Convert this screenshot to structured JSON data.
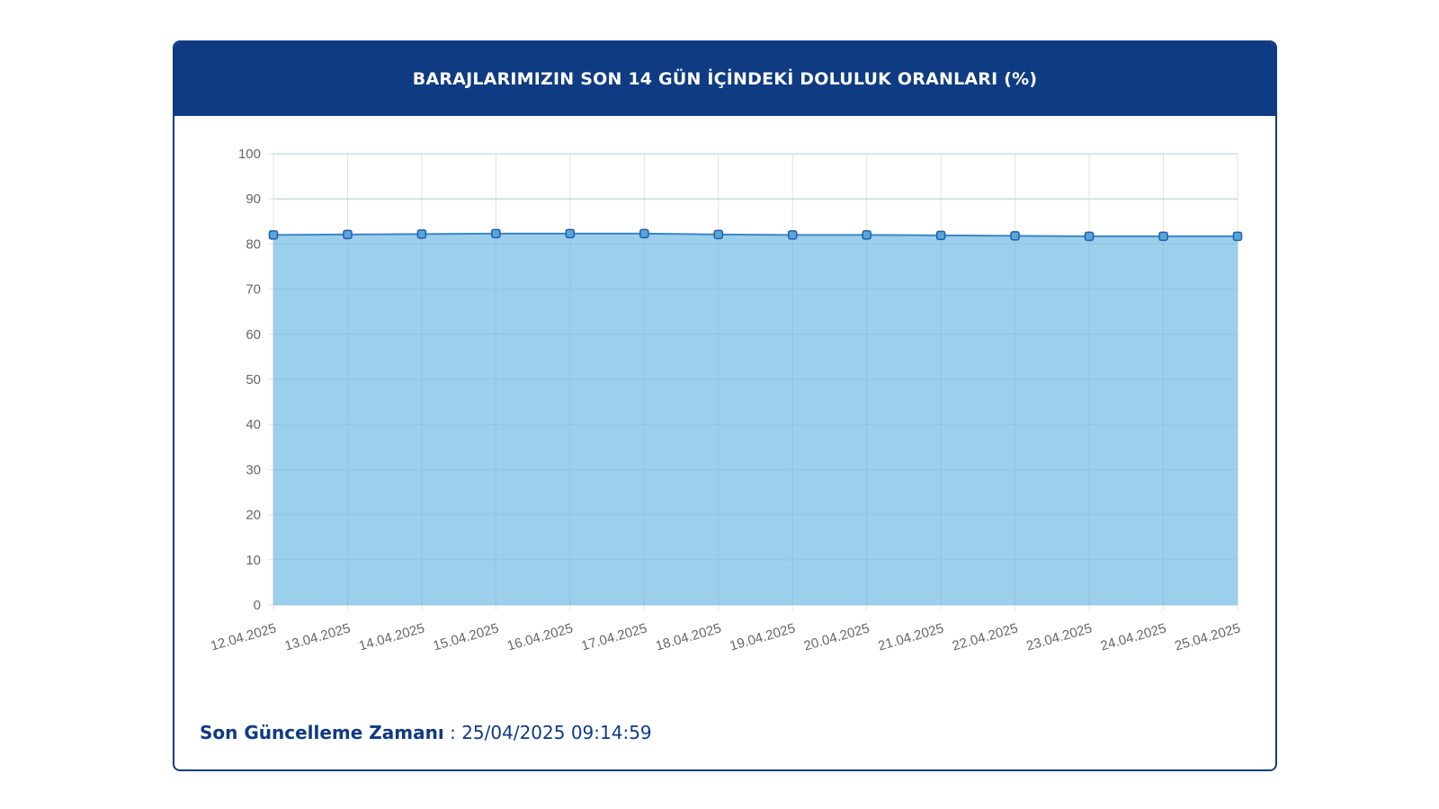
{
  "card": {
    "title": "BARAJLARIMIZIN SON 14 GÜN İÇİNDEKİ DOLULUK ORANLARI (%)"
  },
  "footer": {
    "label": "Son Güncelleme Zamanı",
    "separator": " : ",
    "timestamp": "25/04/2025 09:14:59"
  },
  "colors": {
    "header": "#0f3b82",
    "area_fill": "#9ccfec",
    "line": "#3a86c6",
    "point_fill": "#5aa4dc",
    "point_stroke": "#1f5fa8",
    "grid": "#e2e2e2",
    "grid_over_fill": "#84bbe0"
  },
  "chart_data": {
    "type": "area",
    "title": "BARAJLARIMIZIN SON 14 GÜN İÇİNDEKİ DOLULUK ORANLARI (%)",
    "xlabel": "",
    "ylabel": "",
    "ylim": [
      0,
      100
    ],
    "yticks": [
      0,
      10,
      20,
      30,
      40,
      50,
      60,
      70,
      80,
      90,
      100
    ],
    "grid": true,
    "legend": "none",
    "categories": [
      "12.04.2025",
      "13.04.2025",
      "14.04.2025",
      "15.04.2025",
      "16.04.2025",
      "17.04.2025",
      "18.04.2025",
      "19.04.2025",
      "20.04.2025",
      "21.04.2025",
      "22.04.2025",
      "23.04.2025",
      "24.04.2025",
      "25.04.2025"
    ],
    "series": [
      {
        "values": [
          82.0,
          82.1,
          82.2,
          82.3,
          82.3,
          82.3,
          82.1,
          82.0,
          82.0,
          81.9,
          81.8,
          81.7,
          81.7,
          81.7
        ]
      }
    ]
  }
}
